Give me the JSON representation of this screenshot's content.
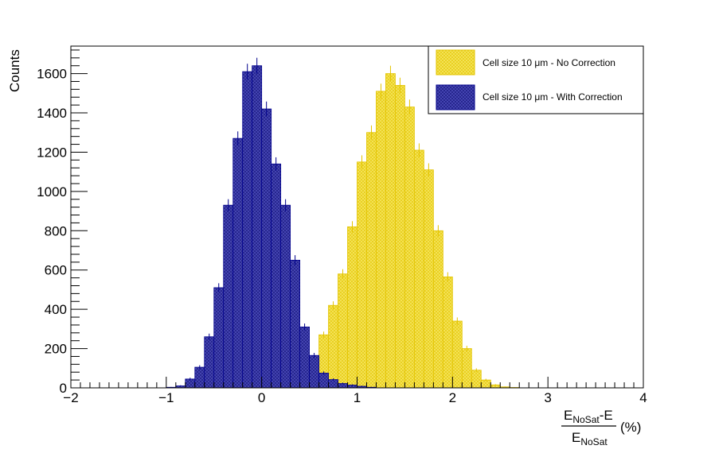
{
  "chart_data": {
    "type": "histogram",
    "title": "",
    "ylabel": "Counts",
    "xlabel": {
      "numerator_main": "E",
      "numerator_sub": "NoSat",
      "numerator_rest": "-E",
      "denominator_main": "E",
      "denominator_sub": "NoSat",
      "unit": "(%)"
    },
    "xlim": [
      -2,
      4
    ],
    "ylim": [
      0,
      1740
    ],
    "x_ticks": [
      "−2",
      "−1",
      "0",
      "1",
      "2",
      "3",
      "4"
    ],
    "y_ticks": [
      "0",
      "200",
      "400",
      "600",
      "800",
      "1000",
      "1200",
      "1400",
      "1600"
    ],
    "grid": false,
    "legend_position": "top-right",
    "bin_width": 0.1,
    "bin_start": -1.0,
    "series": [
      {
        "name": "Cell size 10 μm - No Correction",
        "fill": "#f2e04a",
        "hatch": "#e8c800",
        "values": [
          0,
          0,
          0,
          0,
          0,
          0,
          0,
          0,
          0,
          0,
          2,
          5,
          18,
          40,
          80,
          150,
          270,
          420,
          580,
          820,
          1150,
          1300,
          1510,
          1600,
          1540,
          1430,
          1210,
          1110,
          800,
          565,
          340,
          200,
          90,
          40,
          15,
          5,
          2,
          0,
          0,
          0
        ]
      },
      {
        "name": "Cell size 10 μm - With Correction",
        "fill": "#3b3bb0",
        "hatch": "#00008b",
        "values": [
          3,
          10,
          45,
          105,
          260,
          510,
          930,
          1270,
          1610,
          1640,
          1420,
          1140,
          930,
          650,
          310,
          165,
          75,
          42,
          22,
          14,
          8,
          3,
          0,
          0,
          0,
          0,
          0,
          0,
          0,
          0,
          0,
          0,
          0,
          0,
          0,
          0,
          0,
          0,
          0,
          0
        ]
      }
    ]
  }
}
